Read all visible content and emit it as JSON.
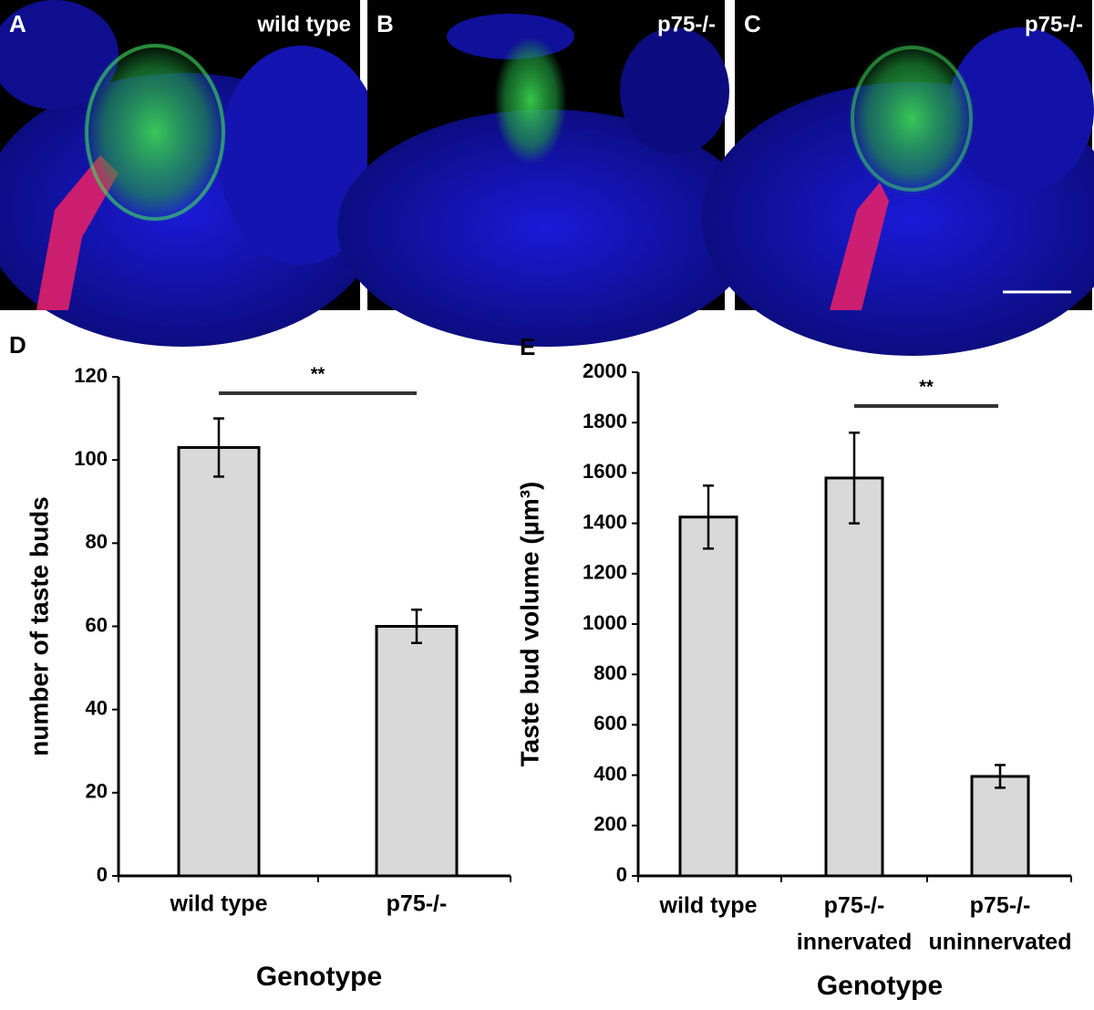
{
  "image_panels": [
    {
      "letter": "A",
      "label": "wild type"
    },
    {
      "letter": "B",
      "label": "p75-/-"
    },
    {
      "letter": "C",
      "label": "p75-/-"
    }
  ],
  "chart_data": [
    {
      "type": "bar",
      "panel_label": "D",
      "x_label": "Genotype",
      "y_label": "number of taste buds",
      "categories": [
        [
          "wild type"
        ],
        [
          "p75-/-"
        ]
      ],
      "series": [
        {
          "values": [
            103,
            60
          ],
          "errors": [
            7,
            4
          ],
          "color": "#d9d9d9"
        }
      ],
      "ylim": [
        0,
        120
      ],
      "yticks": [
        0,
        20,
        40,
        60,
        80,
        100,
        120
      ],
      "annotations": [
        {
          "text": "**"
        }
      ]
    },
    {
      "type": "bar",
      "panel_label": "E",
      "x_label": "Genotype",
      "y_label": "Taste bud volume (µm³)",
      "categories": [
        [
          "wild type"
        ],
        [
          "p75-/-",
          "innervated"
        ],
        [
          "p75-/-",
          "uninnervated"
        ]
      ],
      "series": [
        {
          "values": [
            1425,
            1580,
            395
          ],
          "errors": [
            125,
            180,
            45
          ],
          "color": "#d9d9d9"
        }
      ],
      "ylim": [
        0,
        2000
      ],
      "yticks": [
        0,
        200,
        400,
        600,
        800,
        1000,
        1200,
        1400,
        1600,
        1800,
        2000
      ],
      "annotations": [
        {
          "text": "**"
        }
      ]
    }
  ]
}
